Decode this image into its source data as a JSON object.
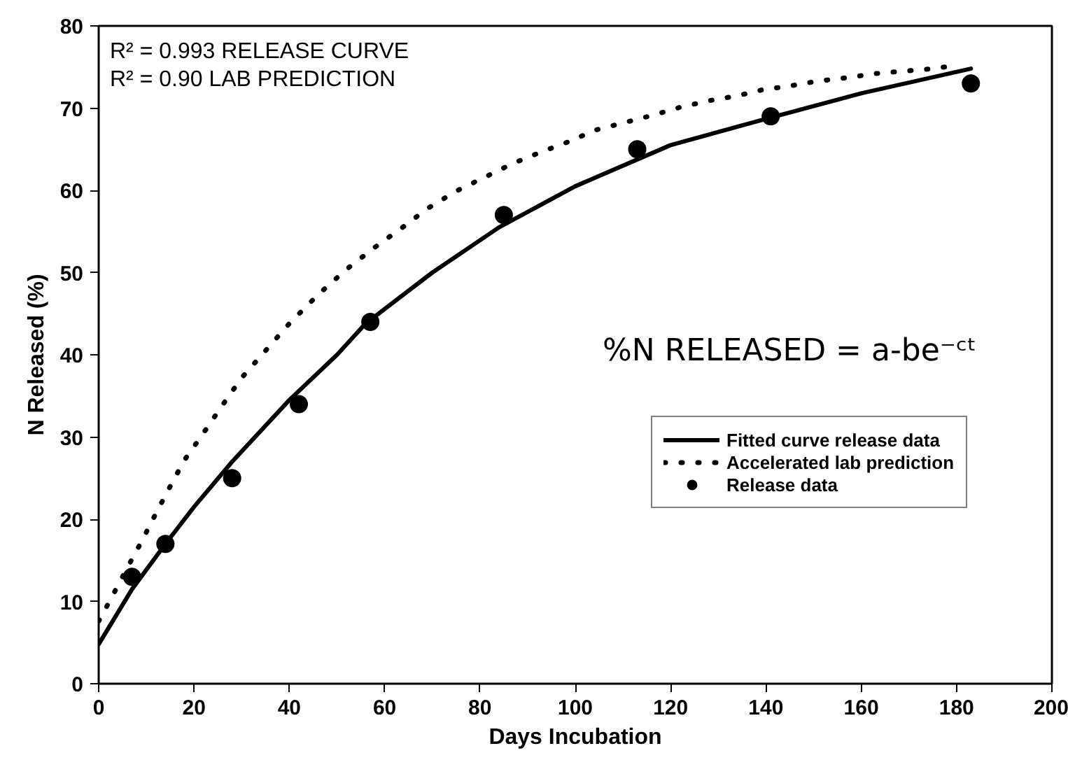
{
  "chart_data": {
    "type": "line",
    "xlabel": "Days Incubation",
    "ylabel": "N Released (%)",
    "xlim": [
      0,
      200
    ],
    "xticks": [
      0,
      20,
      40,
      60,
      80,
      100,
      120,
      140,
      160,
      180,
      200
    ],
    "ylim": [
      0,
      80
    ],
    "yticks": [
      0,
      10,
      20,
      30,
      40,
      50,
      60,
      70,
      80
    ],
    "grid": false,
    "legend": "right",
    "annotations": [
      "R² = 0.993 RELEASE CURVE",
      "R² = 0.90 LAB PREDICTION",
      "%N  RELEASED = a-be⁻ᶜᵗ"
    ],
    "series": [
      {
        "name": "Fitted curve release data",
        "line_style": "solid",
        "color": "#000000",
        "x": [
          0,
          7,
          14,
          20,
          28,
          40,
          50,
          56,
          70,
          84,
          100,
          120,
          140,
          160,
          183
        ],
        "values": [
          4.8,
          11.5,
          17,
          21.5,
          27,
          34.5,
          40,
          43.8,
          50,
          55.5,
          60.5,
          65.5,
          68.7,
          71.8,
          74.8
        ]
      },
      {
        "name": "Accelerated lab prediction",
        "line_style": "dotted",
        "color": "#000000",
        "x": [
          0,
          3,
          6,
          9,
          12,
          15,
          18,
          22,
          26,
          30,
          35,
          40,
          46,
          52,
          58,
          64,
          69,
          75,
          81,
          87,
          93,
          99,
          104,
          110,
          116,
          122,
          128,
          134,
          139,
          145,
          151,
          157,
          163,
          169,
          175,
          180
        ],
        "values": [
          7.6,
          10.8,
          14.1,
          17.3,
          20.7,
          24,
          27.2,
          30.5,
          33.9,
          37.2,
          40.5,
          43.8,
          47.3,
          50.4,
          53.1,
          55.6,
          57.8,
          59.9,
          61.6,
          63.3,
          64.7,
          66,
          67.3,
          68.2,
          69.1,
          70.1,
          70.9,
          71.5,
          72.2,
          72.7,
          73.3,
          73.7,
          74.2,
          74.5,
          74.8,
          75.2
        ]
      },
      {
        "name": "Release data",
        "type": "scatter",
        "marker": "circle",
        "color": "#000000",
        "x": [
          7,
          14,
          28,
          42,
          57,
          85,
          113,
          141,
          183
        ],
        "values": [
          13,
          17,
          25,
          34,
          44,
          57,
          65,
          69,
          73
        ]
      }
    ]
  }
}
